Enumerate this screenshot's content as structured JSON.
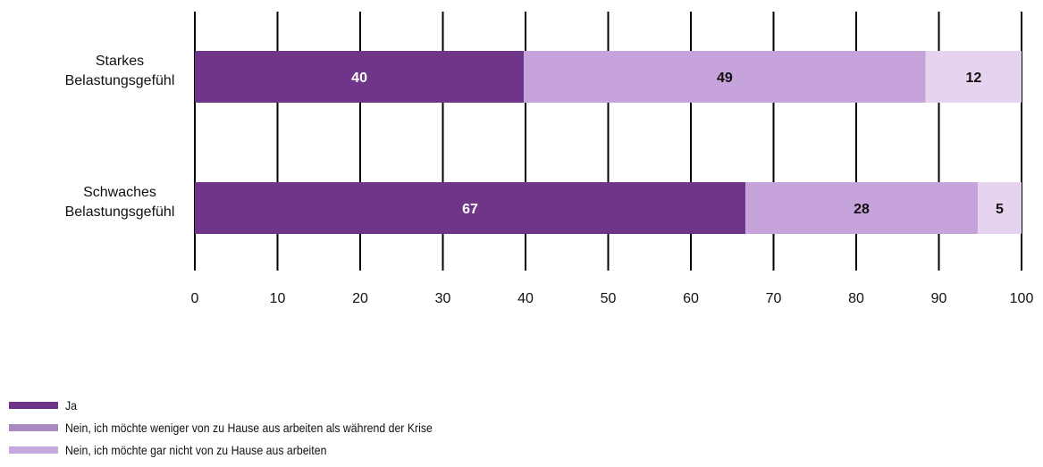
{
  "chart_data": {
    "type": "bar",
    "orientation": "horizontal",
    "stacked": true,
    "categories": [
      [
        "Starkes",
        "Belastungsgefühl"
      ],
      [
        "Schwaches",
        "Belastungsgefühl"
      ]
    ],
    "series": [
      {
        "name": "Ja",
        "values": [
          40,
          67
        ],
        "color": "#6f3589",
        "label_color": "#ffffff"
      },
      {
        "name": "Nein, ich möchte weniger von zu Hause aus arbeiten als während der Krise",
        "values": [
          49,
          28
        ],
        "color": "#c7a3dc",
        "label_color": "#111111"
      },
      {
        "name": "Nein, ich möchte gar nicht von zu Hause aus arbeiten",
        "values": [
          12,
          5
        ],
        "color": "#e6d3ef",
        "label_color": "#111111"
      }
    ],
    "bar_extents": [
      [
        [
          0,
          39.8
        ],
        [
          39.8,
          88.4
        ],
        [
          88.4,
          100
        ]
      ],
      [
        [
          0,
          66.6
        ],
        [
          66.6,
          94.7
        ],
        [
          94.7,
          100
        ]
      ]
    ],
    "xlim": [
      0,
      100
    ],
    "xticks": [
      0,
      10,
      20,
      30,
      40,
      50,
      60,
      70,
      80,
      90,
      100
    ],
    "grid": "vertical",
    "legend_position": "bottom-left"
  },
  "legend": {
    "items": [
      {
        "label": "Ja",
        "color": "#6f3589"
      },
      {
        "label": "Nein, ich möchte weniger von zu Hause aus arbeiten als während der Krise",
        "color": "#a889c2"
      },
      {
        "label": "Nein, ich möchte gar nicht von zu Hause aus arbeiten",
        "color": "#c7a8de"
      }
    ]
  }
}
